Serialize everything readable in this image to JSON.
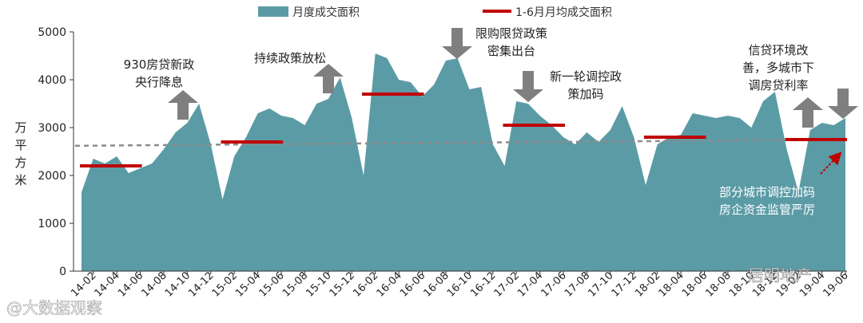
{
  "chart_data": {
    "type": "area",
    "legend": {
      "placement": "top",
      "area_label": "月度成交面积",
      "avg_label": "1-6月月均成交面积"
    },
    "ylabel": "万平方米",
    "ylim": [
      0,
      5000
    ],
    "yticks": [
      "0",
      "1000",
      "2000",
      "3000",
      "4000",
      "5000"
    ],
    "grid": false,
    "x_tick_labels": [
      "14-02",
      "14-04",
      "14-06",
      "14-08",
      "14-10",
      "14-12",
      "15-02",
      "15-04",
      "15-06",
      "15-08",
      "15-10",
      "15-12",
      "16-02",
      "16-04",
      "16-06",
      "16-08",
      "16-10",
      "16-12",
      "17-02",
      "17-04",
      "17-06",
      "17-08",
      "17-10",
      "17-12",
      "18-02",
      "18-04",
      "18-06",
      "18-08",
      "18-10",
      "18-12",
      "19-02",
      "19-04",
      "19-06"
    ],
    "months": [
      "14-01",
      "14-02",
      "14-03",
      "14-04",
      "14-05",
      "14-06",
      "14-07",
      "14-08",
      "14-09",
      "14-10",
      "14-11",
      "14-12",
      "15-01",
      "15-02",
      "15-03",
      "15-04",
      "15-05",
      "15-06",
      "15-07",
      "15-08",
      "15-09",
      "15-10",
      "15-11",
      "15-12",
      "16-01",
      "16-02",
      "16-03",
      "16-04",
      "16-05",
      "16-06",
      "16-07",
      "16-08",
      "16-09",
      "16-10",
      "16-11",
      "16-12",
      "17-01",
      "17-02",
      "17-03",
      "17-04",
      "17-05",
      "17-06",
      "17-07",
      "17-08",
      "17-09",
      "17-10",
      "17-11",
      "17-12",
      "18-01",
      "18-02",
      "18-03",
      "18-04",
      "18-05",
      "18-06",
      "18-07",
      "18-08",
      "18-09",
      "18-10",
      "18-11",
      "18-12",
      "19-01",
      "19-02",
      "19-03",
      "19-04",
      "19-05",
      "19-06"
    ],
    "series": [
      {
        "name": "月度成交面积",
        "color": "#5b9ba6",
        "values": [
          1650,
          2350,
          2250,
          2400,
          2050,
          2150,
          2250,
          2550,
          2900,
          3100,
          3500,
          2650,
          1500,
          2400,
          2800,
          3300,
          3400,
          3250,
          3200,
          3050,
          3500,
          3600,
          4050,
          3200,
          2000,
          4550,
          4450,
          4000,
          3950,
          3650,
          3900,
          4400,
          4450,
          3800,
          3850,
          2650,
          2200,
          3550,
          3500,
          3250,
          3050,
          2800,
          2650,
          2900,
          2700,
          2950,
          3450,
          2800,
          1800,
          2650,
          2800,
          2850,
          3300,
          3250,
          3200,
          3250,
          3200,
          3000,
          3550,
          3750,
          2550,
          1650,
          2950,
          3100,
          3050,
          3200
        ]
      },
      {
        "name": "1-6月月均成交面积",
        "color": "#c00000",
        "segments": [
          {
            "start": "14-01",
            "end": "14-06",
            "value": 2200
          },
          {
            "start": "15-01",
            "end": "15-06",
            "value": 2700
          },
          {
            "start": "16-01",
            "end": "16-06",
            "value": 3700
          },
          {
            "start": "17-01",
            "end": "17-06",
            "value": 3050
          },
          {
            "start": "18-01",
            "end": "18-06",
            "value": 2800
          },
          {
            "start": "19-01",
            "end": "19-06",
            "value": 2750
          }
        ]
      },
      {
        "type": "trend",
        "color": "#8c8c8c",
        "start": {
          "month": "14-01",
          "value": 2620
        },
        "end": {
          "month": "19-06",
          "value": 2750
        }
      }
    ],
    "annotations": [
      {
        "id": "a1",
        "lines": [
          "930房贷新政",
          "央行降息"
        ],
        "arrow": "up",
        "month": "14-11"
      },
      {
        "id": "a2",
        "lines": [
          "持续政策放松"
        ],
        "arrow": "up",
        "month": "15-11"
      },
      {
        "id": "a3",
        "lines": [
          "限购限贷政策",
          "密集出台"
        ],
        "arrow": "down",
        "month": "16-10"
      },
      {
        "id": "a4",
        "lines": [
          "新一轮调控政",
          "策加码"
        ],
        "arrow": "down",
        "month": "17-04"
      },
      {
        "id": "a5",
        "lines": [
          "信贷环境改",
          "善，多城市下",
          "调房贷利率"
        ],
        "arrow": "up",
        "month": "19-03"
      },
      {
        "id": "a6",
        "lines": [],
        "arrow": "down",
        "month": "19-06"
      },
      {
        "id": "a7",
        "lines": [
          "部分城市调控加码",
          "房企资金监管严厉"
        ],
        "arrow": "pointer",
        "month": "19-06"
      }
    ]
  },
  "watermarks": {
    "left": "@大数据观察",
    "right": "居明地产"
  }
}
